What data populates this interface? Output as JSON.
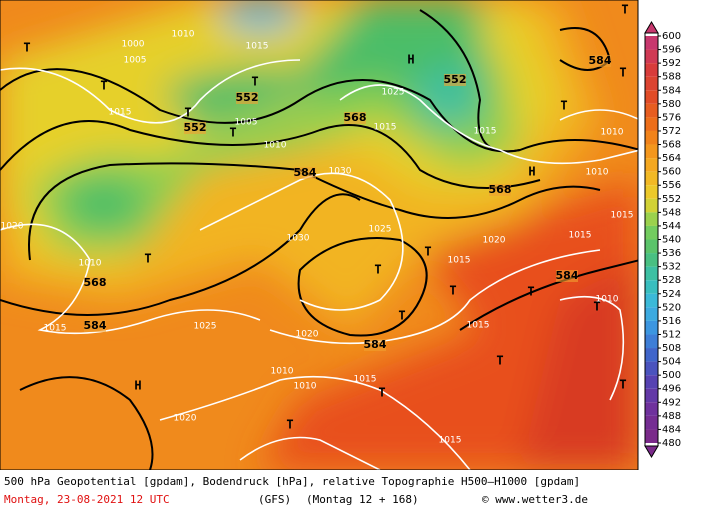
{
  "map": {
    "contour_labels_500": [
      552,
      552,
      552,
      568,
      584,
      568,
      568,
      584,
      584,
      584,
      584
    ],
    "pressure_labels": [
      1015,
      1010,
      1015,
      1005,
      1010,
      1030,
      1030,
      1025,
      1020,
      1015,
      1025,
      1020,
      1015,
      1015,
      1015,
      1020,
      1010,
      1010,
      1010,
      1015,
      1020,
      1015,
      1010,
      1015,
      1015,
      1010,
      1015,
      1025,
      1000,
      1005,
      1010
    ],
    "markers": [
      "T",
      "T",
      "T",
      "T",
      "T",
      "T",
      "T",
      "T",
      "T",
      "T",
      "T",
      "T",
      "T",
      "T",
      "T",
      "T",
      "T",
      "T",
      "T",
      "H",
      "H",
      "H"
    ]
  },
  "color_scale": {
    "levels": [
      600,
      596,
      592,
      588,
      584,
      580,
      576,
      572,
      568,
      564,
      560,
      556,
      552,
      548,
      544,
      540,
      536,
      532,
      528,
      524,
      520,
      516,
      512,
      508,
      504,
      500,
      496,
      492,
      488,
      484,
      480
    ]
  },
  "footer": {
    "description": "500 hPa Geopotential [gpdam], Bodendruck [hPa], relative Topographie H500–H1000 [gpdam]",
    "date": "Montag, 23-08-2021  12 UTC",
    "model": "(GFS)",
    "run": "(Montag 12 + 168)",
    "source": "© www.wetter3.de"
  }
}
